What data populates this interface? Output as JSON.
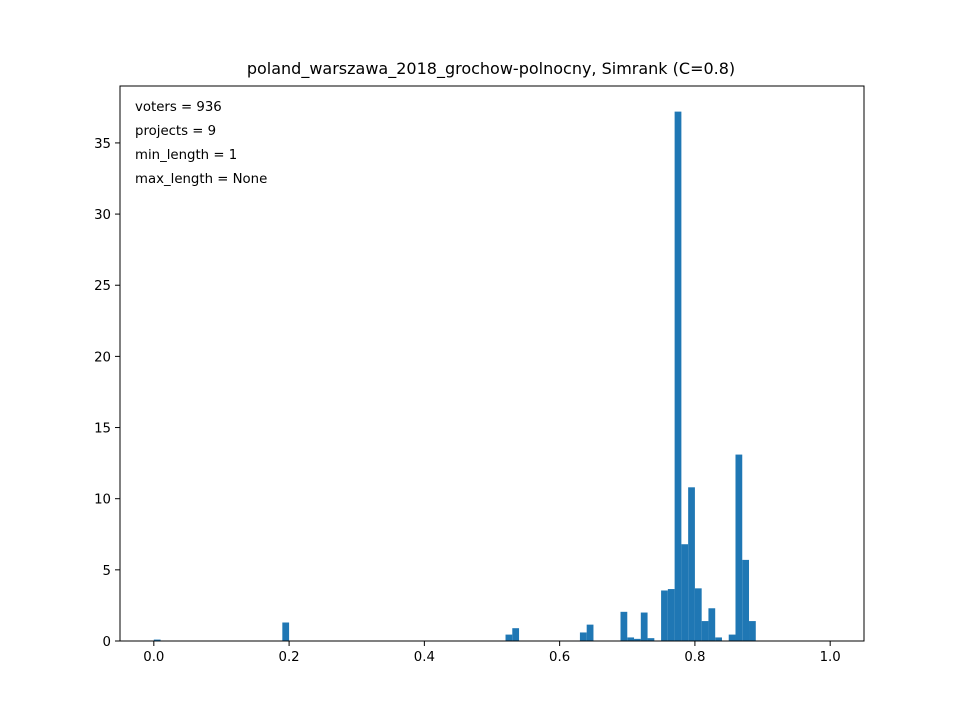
{
  "chart_data": {
    "type": "bar",
    "title": "poland_warszawa_2018_grochow-polnocny, Simrank (C=0.8)",
    "xlabel": "",
    "ylabel": "",
    "xlim": [
      -0.05,
      1.05
    ],
    "ylim": [
      0,
      39
    ],
    "xticks": [
      0.0,
      0.2,
      0.4,
      0.6,
      0.8,
      1.0
    ],
    "xtick_labels": [
      "0.0",
      "0.2",
      "0.4",
      "0.6",
      "0.8",
      "1.0"
    ],
    "yticks": [
      0,
      5,
      10,
      15,
      20,
      25,
      30,
      35
    ],
    "ytick_labels": [
      "0",
      "5",
      "10",
      "15",
      "20",
      "25",
      "30",
      "35"
    ],
    "bin_width": 0.01,
    "color": "#1f77b4",
    "annotations": [
      "voters = 936",
      "projects = 9",
      "min_length = 1",
      "max_length = None"
    ],
    "bins": [
      {
        "x": 0.0,
        "value": 0.1
      },
      {
        "x": 0.19,
        "value": 1.3
      },
      {
        "x": 0.52,
        "value": 0.45
      },
      {
        "x": 0.53,
        "value": 0.9
      },
      {
        "x": 0.63,
        "value": 0.6
      },
      {
        "x": 0.64,
        "value": 1.15
      },
      {
        "x": 0.69,
        "value": 2.05
      },
      {
        "x": 0.7,
        "value": 0.25
      },
      {
        "x": 0.71,
        "value": 0.15
      },
      {
        "x": 0.72,
        "value": 2.0
      },
      {
        "x": 0.73,
        "value": 0.2
      },
      {
        "x": 0.75,
        "value": 3.55
      },
      {
        "x": 0.76,
        "value": 3.65
      },
      {
        "x": 0.77,
        "value": 37.2
      },
      {
        "x": 0.78,
        "value": 6.8
      },
      {
        "x": 0.79,
        "value": 10.8
      },
      {
        "x": 0.8,
        "value": 3.7
      },
      {
        "x": 0.81,
        "value": 1.4
      },
      {
        "x": 0.82,
        "value": 2.3
      },
      {
        "x": 0.83,
        "value": 0.25
      },
      {
        "x": 0.85,
        "value": 0.45
      },
      {
        "x": 0.86,
        "value": 13.1
      },
      {
        "x": 0.87,
        "value": 5.7
      },
      {
        "x": 0.88,
        "value": 1.4
      }
    ]
  }
}
